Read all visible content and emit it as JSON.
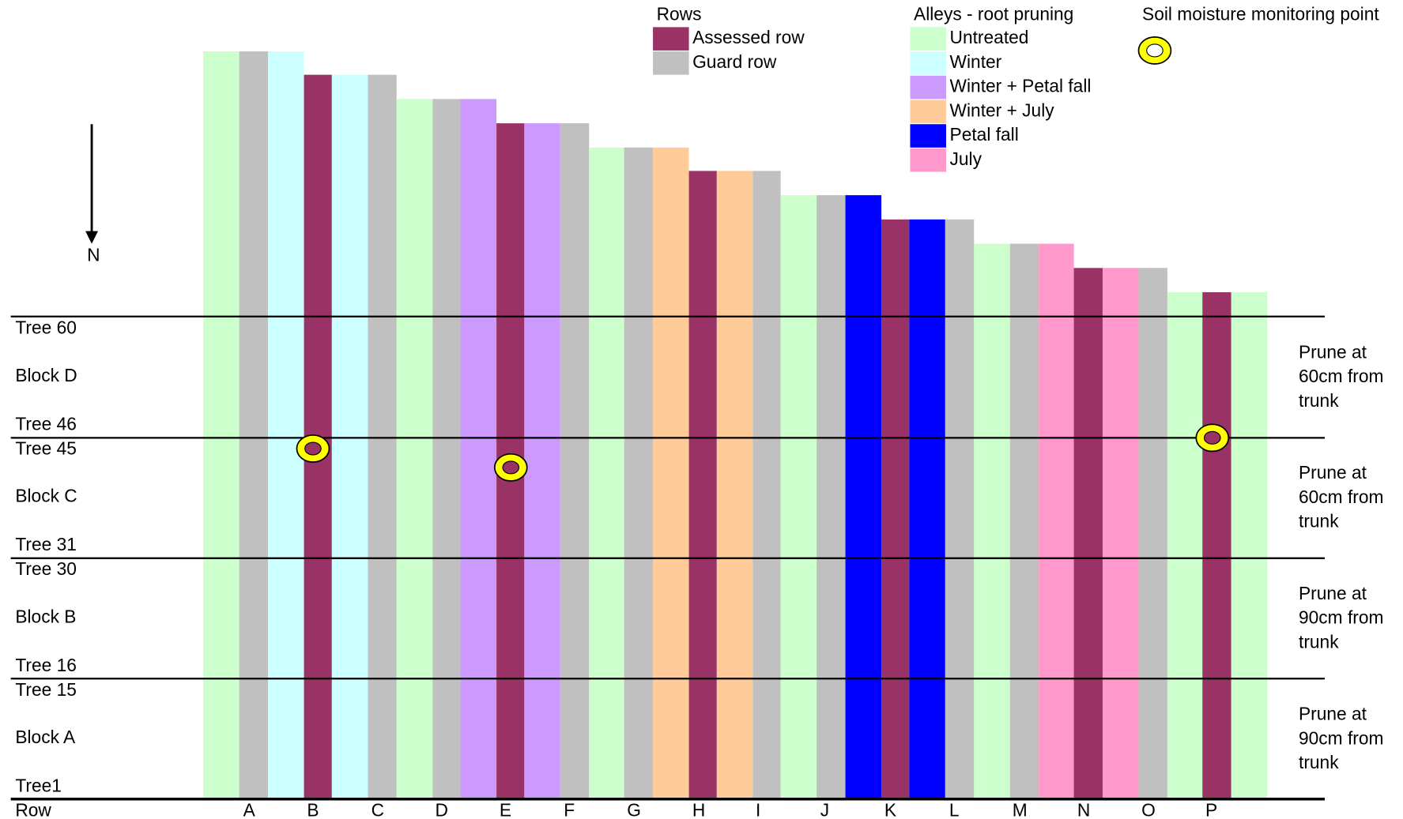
{
  "legend": {
    "rows": {
      "title": "Rows",
      "items": [
        {
          "label": "Assessed row",
          "color": "#993366"
        },
        {
          "label": "Guard row",
          "color": "#c0c0c0"
        }
      ]
    },
    "alleys": {
      "title": "Alleys - root pruning",
      "items": [
        {
          "label": "Untreated",
          "color": "#ccffcc"
        },
        {
          "label": "Winter",
          "color": "#ccffff"
        },
        {
          "label": "Winter + Petal fall",
          "color": "#cc99ff"
        },
        {
          "label": "Winter + July",
          "color": "#ffcc99"
        },
        {
          "label": "Petal fall",
          "color": "#0000ff"
        },
        {
          "label": "July",
          "color": "#ff99cc"
        }
      ]
    },
    "monitoring": {
      "title": "Soil moisture monitoring point"
    }
  },
  "north": "N",
  "blocks": [
    {
      "top": "Tree 60",
      "name": "Block D",
      "bottom": "Tree 46",
      "note": [
        "Prune at",
        "60cm from",
        "trunk"
      ]
    },
    {
      "top": "Tree 45",
      "name": "Block C",
      "bottom": "Tree 31",
      "note": [
        "Prune at",
        "60cm from",
        "trunk"
      ]
    },
    {
      "top": "Tree 30",
      "name": "Block B",
      "bottom": "Tree 16",
      "note": [
        "Prune at",
        "90cm from",
        "trunk"
      ]
    },
    {
      "top": "Tree 15",
      "name": "Block A",
      "bottom": "Tree1",
      "note": [
        "Prune at",
        "90cm from",
        "trunk"
      ]
    }
  ],
  "row_header": "Row",
  "rows": [
    "A",
    "B",
    "C",
    "D",
    "E",
    "F",
    "G",
    "H",
    "I",
    "J",
    "K",
    "L",
    "M",
    "N",
    "O",
    "P"
  ]
}
